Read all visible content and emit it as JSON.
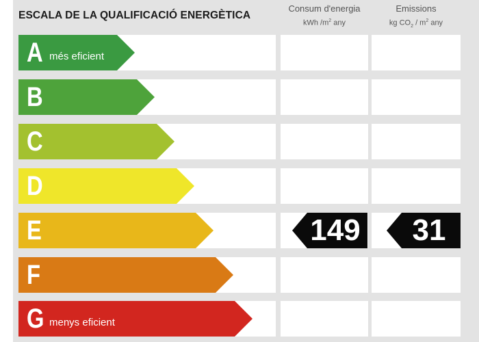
{
  "header": {
    "title": "ESCALA DE LA QUALIFICACIÓ ENERGÈTICA",
    "consumption": {
      "label": "Consum d'energia",
      "unit_pre": "kWh /m",
      "unit_sup": "2",
      "unit_post": " any"
    },
    "emissions": {
      "label": "Emissions",
      "unit_pre": "kg CO",
      "unit_sub": "2",
      "unit_mid": " / m",
      "unit_sup": "2",
      "unit_post": " any"
    }
  },
  "ratings": [
    {
      "letter": "A",
      "label": "més eficient",
      "color": "#3a9a41"
    },
    {
      "letter": "B",
      "label": "",
      "color": "#4ea33b"
    },
    {
      "letter": "C",
      "label": "",
      "color": "#a3c12f"
    },
    {
      "letter": "D",
      "label": "",
      "color": "#efe62a"
    },
    {
      "letter": "E",
      "label": "",
      "color": "#e8b71a"
    },
    {
      "letter": "F",
      "label": "",
      "color": "#d97a15"
    },
    {
      "letter": "G",
      "label": "menys eficient",
      "color": "#d2261f"
    }
  ],
  "result": {
    "rating": "E",
    "consumption_value": "149",
    "emissions_value": "31"
  }
}
